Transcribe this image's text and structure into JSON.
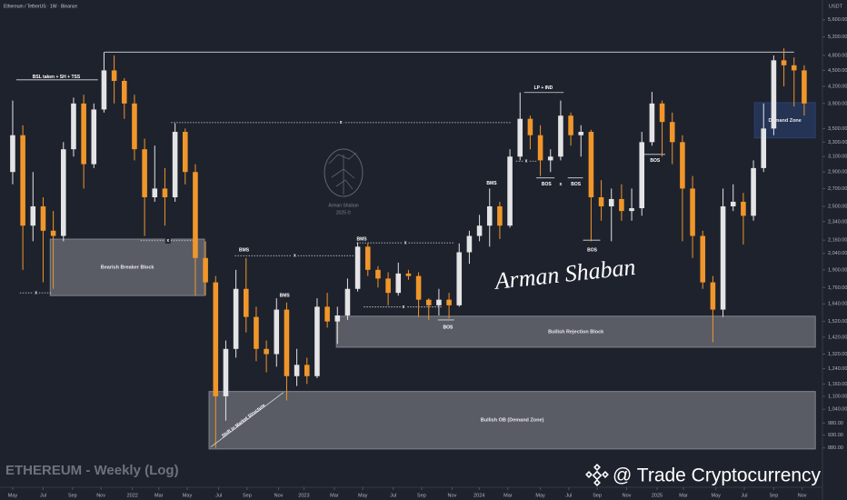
{
  "chart_data": {
    "type": "candlestick",
    "subtitle": "Ethereum / TetherUS · 1W · Binance",
    "title": "ETHEREUM - Weekly (Log)",
    "y_unit": "USDT",
    "watermark": "@ Trade Cryptocurrency",
    "signature": "Arman Shaban",
    "logo": {
      "name": "Arman Shaban",
      "year": "2025 ©"
    },
    "log_scale": true,
    "grid": false,
    "up_color": "#e4e4e6",
    "down_color": "#f0962a",
    "open": [
      2900,
      3400,
      2300,
      2500,
      2250,
      2200,
      3200,
      3900,
      3000,
      3800,
      4500,
      4300,
      3900,
      3200,
      2600,
      2700,
      2600,
      3450,
      2900,
      2000,
      1800,
      1100,
      1350,
      1750,
      1550,
      1350,
      1320,
      1600,
      1200,
      1260,
      1200,
      1620,
      1520,
      1560,
      1750,
      2100,
      1900,
      1830,
      1720,
      1870,
      1850,
      1670,
      1630,
      1670,
      1630,
      2050,
      2200,
      2300,
      2500,
      2300,
      3100,
      3650,
      3400,
      3050,
      3100,
      3700,
      3400,
      3450,
      2600,
      2500,
      2580,
      2450,
      2480,
      3300,
      3900,
      3600,
      3300,
      2700,
      2200,
      1800,
      1600,
      2500,
      2550,
      2400,
      2950,
      3500,
      4700,
      4600,
      4500
    ],
    "high": [
      3950,
      3550,
      2900,
      2600,
      2450,
      3300,
      4000,
      4050,
      3900,
      4870,
      4800,
      4350,
      4050,
      3350,
      3250,
      2950,
      3580,
      3500,
      3000,
      2150,
      1850,
      1400,
      1900,
      2000,
      1620,
      1400,
      1680,
      1650,
      1350,
      1300,
      1680,
      1720,
      1620,
      1830,
      2140,
      2130,
      1930,
      1880,
      1960,
      1900,
      1880,
      1680,
      1750,
      1720,
      2130,
      2250,
      2410,
      2700,
      2550,
      3200,
      4090,
      3700,
      3550,
      3200,
      3950,
      3750,
      3550,
      3480,
      2800,
      2700,
      2750,
      2700,
      3450,
      4100,
      3950,
      3750,
      3400,
      2850,
      2250,
      1850,
      2700,
      2750,
      2650,
      3050,
      3900,
      4800,
      4950,
      4760,
      4600
    ],
    "low": [
      2750,
      1900,
      2150,
      1800,
      1750,
      2150,
      3100,
      2700,
      2950,
      3750,
      3900,
      3650,
      3050,
      2200,
      2550,
      2300,
      2550,
      2750,
      1700,
      1700,
      880,
      990,
      1300,
      1450,
      1280,
      1220,
      1250,
      1080,
      1150,
      1160,
      1190,
      1480,
      1380,
      1530,
      1730,
      1850,
      1760,
      1630,
      1700,
      1820,
      1550,
      1530,
      1560,
      1540,
      1620,
      1950,
      2150,
      2100,
      2170,
      2280,
      3050,
      3200,
      2850,
      2900,
      3050,
      3250,
      3100,
      2150,
      2350,
      2150,
      2350,
      2350,
      2400,
      3250,
      3100,
      3000,
      2150,
      2000,
      1750,
      1390,
      1550,
      2450,
      2120,
      2350,
      2900,
      3400,
      4200,
      3850,
      3700
    ],
    "close": [
      3400,
      2300,
      2500,
      2250,
      2200,
      3200,
      3900,
      3000,
      3800,
      4500,
      4300,
      3900,
      3200,
      2600,
      2700,
      2600,
      3450,
      2900,
      2000,
      1800,
      1100,
      1350,
      1750,
      1550,
      1350,
      1320,
      1600,
      1200,
      1260,
      1200,
      1620,
      1520,
      1560,
      1750,
      2100,
      1900,
      1830,
      1720,
      1870,
      1850,
      1670,
      1630,
      1670,
      1630,
      2050,
      2200,
      2300,
      2500,
      2300,
      3100,
      3650,
      3400,
      3050,
      3100,
      3700,
      3400,
      3450,
      2600,
      2500,
      2580,
      2450,
      2480,
      3300,
      3900,
      3600,
      3300,
      2700,
      2200,
      1800,
      1600,
      2500,
      2550,
      2400,
      2950,
      3500,
      4700,
      4600,
      4500,
      3900
    ],
    "xlim": [
      -1.25,
      79.8
    ],
    "xticks": [
      {
        "value": 0,
        "label": "May"
      },
      {
        "value": 3.0,
        "label": "Jul"
      },
      {
        "value": 5.9,
        "label": "Sep"
      },
      {
        "value": 8.7,
        "label": "Nov"
      },
      {
        "value": 11.8,
        "label": "2022"
      },
      {
        "value": 14.4,
        "label": "Mar"
      },
      {
        "value": 17.2,
        "label": "May"
      },
      {
        "value": 20.3,
        "label": "Jul"
      },
      {
        "value": 23.1,
        "label": "Sep"
      },
      {
        "value": 26.2,
        "label": "Nov"
      },
      {
        "value": 28.7,
        "label": "2023"
      },
      {
        "value": 31.7,
        "label": "Mar"
      },
      {
        "value": 34.5,
        "label": "May"
      },
      {
        "value": 37.5,
        "label": "Jul"
      },
      {
        "value": 40.3,
        "label": "Sep"
      },
      {
        "value": 43.3,
        "label": "Nov"
      },
      {
        "value": 45.97,
        "label": "2024"
      },
      {
        "value": 48.8,
        "label": "Mar"
      },
      {
        "value": 52.0,
        "label": "May"
      },
      {
        "value": 54.8,
        "label": "Jul"
      },
      {
        "value": 57.6,
        "label": "Sep"
      },
      {
        "value": 60.5,
        "label": "Nov"
      },
      {
        "value": 63.5,
        "label": "2025"
      },
      {
        "value": 66.1,
        "label": "Mar"
      },
      {
        "value": 69.3,
        "label": "May"
      },
      {
        "value": 72.1,
        "label": "Jul"
      },
      {
        "value": 75.0,
        "label": "Sep"
      },
      {
        "value": 77.8,
        "label": "Nov"
      }
    ],
    "ylim": [
      760,
      6100
    ],
    "yticks": [
      {
        "value": 5600,
        "label": "5,600.00"
      },
      {
        "value": 5200,
        "label": "5,200.00"
      },
      {
        "value": 4800,
        "label": "4,800.00"
      },
      {
        "value": 4500,
        "label": "4,500.00"
      },
      {
        "value": 4200,
        "label": "4,200.00"
      },
      {
        "value": 3900,
        "label": "3,900.00"
      },
      {
        "value": 3500,
        "label": "3,500.00"
      },
      {
        "value": 3300,
        "label": "3,300.00"
      },
      {
        "value": 3100,
        "label": "3,100.00"
      },
      {
        "value": 2900,
        "label": "2,900.00"
      },
      {
        "value": 2700,
        "label": "2,700.00"
      },
      {
        "value": 2500,
        "label": "2,500.00"
      },
      {
        "value": 2340,
        "label": "2,340.00"
      },
      {
        "value": 2160,
        "label": "2,160.00"
      },
      {
        "value": 2040,
        "label": "2,040.00"
      },
      {
        "value": 1900,
        "label": "1,900.00"
      },
      {
        "value": 1760,
        "label": "1,760.00"
      },
      {
        "value": 1640,
        "label": "1,640.00"
      },
      {
        "value": 1520,
        "label": "1,520.00"
      },
      {
        "value": 1420,
        "label": "1,420.00"
      },
      {
        "value": 1320,
        "label": "1,320.00"
      },
      {
        "value": 1240,
        "label": "1,240.00"
      },
      {
        "value": 1160,
        "label": "1,160.00"
      },
      {
        "value": 1100,
        "label": "1,100.00"
      },
      {
        "value": 1040,
        "label": "1,040.00"
      },
      {
        "value": 980,
        "label": "980.00"
      },
      {
        "value": 930,
        "label": "930.00"
      },
      {
        "value": 880,
        "label": "880.00"
      }
    ],
    "zones": [
      {
        "label": "Bearish Breaker Block",
        "start": 3.7,
        "end": 18.9,
        "top": 2170,
        "bottom": 1700,
        "color": "#8a8c93"
      },
      {
        "label": "Bullish Rejection Block",
        "start": 31.9,
        "end": 79.1,
        "top": 1555,
        "bottom": 1360,
        "color": "#8a8c93"
      },
      {
        "label": "Bullish OB (Demand Zone)",
        "start": 19.35,
        "end": 79.1,
        "top": 1123,
        "bottom": 876,
        "color": "#8a8c93"
      },
      {
        "label": "Demand Zone",
        "start": 73.1,
        "end": 79.1,
        "top": 3915,
        "bottom": 3360,
        "color": "#2b4377"
      }
    ],
    "levels": [
      {
        "price": 4870,
        "from": 9.05,
        "to": 77.0,
        "style": "solid"
      },
      {
        "price": 4320,
        "from": 0.36,
        "to": 8.4,
        "style": "solid"
      },
      {
        "price": 3590,
        "from": 15.6,
        "to": 49.1,
        "style": "dotted",
        "label": "x"
      },
      {
        "price": 2155,
        "from": 12.6,
        "to": 18.0,
        "style": "dotted",
        "label": "x"
      },
      {
        "price": 2020,
        "from": 21.9,
        "to": 33.7,
        "style": "dotted",
        "label": "x"
      },
      {
        "price": 2135,
        "from": 33.9,
        "to": 43.5,
        "style": "dotted",
        "label": "x"
      },
      {
        "price": 1618,
        "from": 34.6,
        "to": 42.4,
        "style": "dotted",
        "label": "x"
      },
      {
        "price": 1720,
        "from": 0.7,
        "to": 3.9,
        "style": "dotted",
        "label": "x"
      },
      {
        "price": 4090,
        "from": 50.4,
        "to": 54.3,
        "style": "solid"
      },
      {
        "price": 3040,
        "from": 49.6,
        "to": 51.6,
        "style": "dotted",
        "label": "x"
      },
      {
        "price": 2827,
        "from": 51.6,
        "to": 53.4,
        "style": "solid"
      },
      {
        "price": 2827,
        "from": 54.7,
        "to": 56.2,
        "style": "solid"
      },
      {
        "price": 2160,
        "from": 56.2,
        "to": 57.9,
        "style": "solid"
      },
      {
        "price": 3130,
        "from": 62.2,
        "to": 64.3,
        "style": "solid"
      },
      {
        "price": 1530,
        "from": 41.9,
        "to": 43.5,
        "style": "solid"
      }
    ],
    "annotations": [
      {
        "text": "BSL taken + SH + TSS",
        "price": 4370,
        "at": 4.3
      },
      {
        "text": "BMS",
        "price": 2070,
        "at": 22.8
      },
      {
        "text": "BMS",
        "price": 1700,
        "at": 26.8
      },
      {
        "text": "BMS",
        "price": 2170,
        "at": 34.4
      },
      {
        "text": "BMS",
        "price": 2760,
        "at": 47.2
      },
      {
        "text": "LP + IND",
        "price": 4170,
        "at": 52.3
      },
      {
        "text": "BOS",
        "price": 2750,
        "at": 52.6
      },
      {
        "text": "x",
        "price": 2750,
        "at": 54.0
      },
      {
        "text": "BOS",
        "price": 2750,
        "at": 55.5
      },
      {
        "text": "BOS",
        "price": 2070,
        "at": 57.1
      },
      {
        "text": "BOS",
        "price": 3045,
        "at": 63.3
      },
      {
        "text": "BOS",
        "price": 1480,
        "at": 42.9
      }
    ],
    "structure_shift": {
      "text": "Shift in Market Structure",
      "price": 994,
      "at": 23.1
    }
  }
}
